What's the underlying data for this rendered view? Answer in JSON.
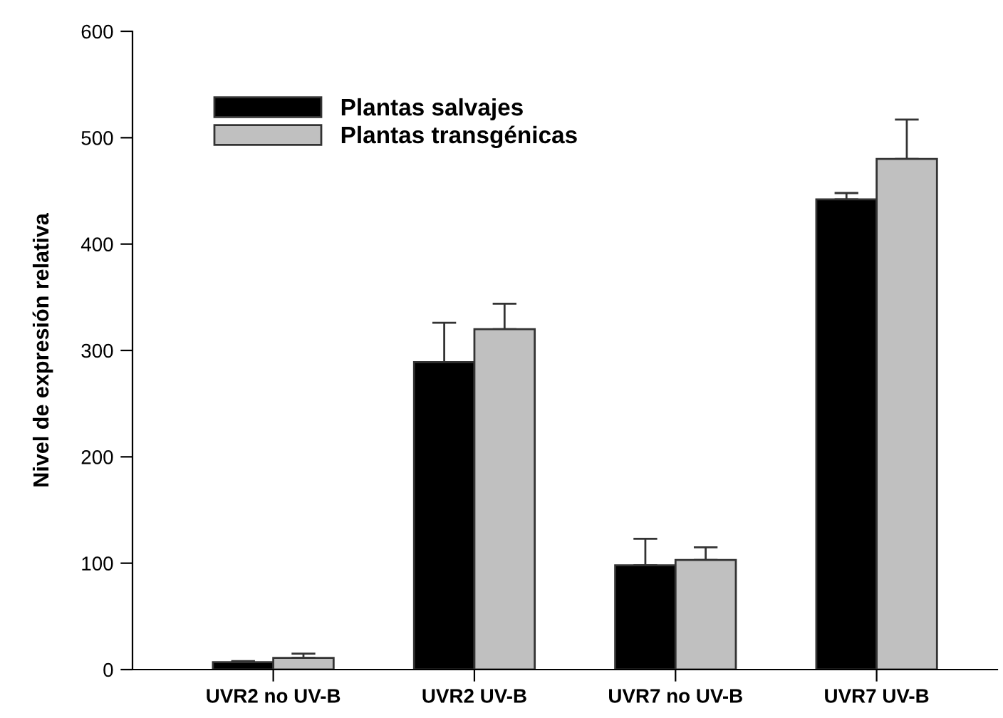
{
  "chart_data": {
    "type": "bar",
    "ylabel": "Nivel de expresión relativa",
    "categories": [
      "UVR2 no UV-B",
      "UVR2 UV-B",
      "UVR7 no UV-B",
      "UVR7 UV-B"
    ],
    "series": [
      {
        "name": "Plantas salvajes",
        "color": "#000000",
        "values": [
          7,
          289,
          98,
          442
        ],
        "errors": [
          [
            7,
            8
          ],
          [
            289,
            326
          ],
          [
            98,
            123
          ],
          [
            442,
            448
          ]
        ]
      },
      {
        "name": "Plantas transgénicas",
        "color": "#c0c0c0",
        "values": [
          11,
          320,
          103,
          480
        ],
        "errors": [
          [
            11,
            15
          ],
          [
            320,
            344
          ],
          [
            103,
            115
          ],
          [
            480,
            517
          ]
        ]
      }
    ],
    "ylim": [
      0,
      600
    ],
    "yticks": [
      0,
      100,
      200,
      300,
      400,
      500,
      600
    ],
    "legend": "top left",
    "grid": false
  }
}
